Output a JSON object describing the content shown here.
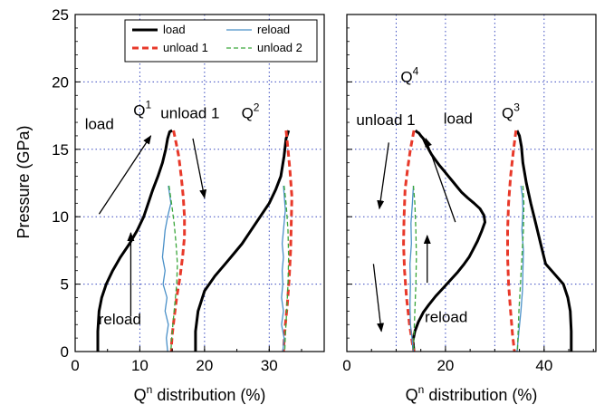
{
  "colors": {
    "load": "#000000",
    "reload": "#4a90c8",
    "unload1": "#e8392a",
    "unload2": "#3aa63a",
    "grid": "#3b4cc0"
  },
  "chart_data": [
    {
      "type": "line",
      "panel": "left",
      "xlabel_main": "Q",
      "xlabel_sup": "n",
      "xlabel_rest": " distribution (%)",
      "ylabel": "Pressure (GPa)",
      "xlim": [
        0,
        38.5
      ],
      "ylim": [
        0,
        25
      ],
      "xticks": [
        0,
        10,
        20,
        30
      ],
      "yticks": [
        0,
        5,
        10,
        15,
        20,
        25
      ],
      "xgrid": [
        10,
        20,
        30
      ],
      "ygrid": [
        5,
        10,
        15,
        20
      ],
      "legend": {
        "placement": "top",
        "entries": [
          {
            "series": "load",
            "label": "load"
          },
          {
            "series": "reload",
            "label": "reload"
          },
          {
            "series": "unload1",
            "label": "unload 1"
          },
          {
            "series": "unload2",
            "label": "unload 2"
          }
        ]
      },
      "series": [
        {
          "name": "load",
          "key": "load",
          "style": "solid",
          "width": 3,
          "x": [
            3.5,
            3.5,
            3.7,
            4.1,
            4.8,
            5.8,
            7.0,
            8.4,
            9.6,
            10.6,
            11.3,
            12.0,
            12.8,
            13.5,
            14.0,
            14.3,
            14.6,
            15.0
          ],
          "y": [
            0,
            1.5,
            3,
            4,
            5,
            6,
            7,
            8,
            9,
            10,
            11,
            12,
            13,
            14,
            15,
            15.8,
            16.3,
            16.4
          ]
        },
        {
          "name": "unload 1",
          "key": "unload1",
          "style": "dashed",
          "width": 3,
          "x": [
            15.2,
            15.6,
            16.0,
            16.4,
            16.7,
            16.9,
            16.9,
            16.6,
            16.2,
            15.7,
            15.3,
            15.0,
            14.9,
            14.9
          ],
          "y": [
            16.4,
            15.5,
            14.5,
            13,
            11.5,
            10,
            8.5,
            7,
            5.5,
            4,
            2.5,
            1.2,
            0.5,
            0
          ]
        },
        {
          "name": "reload",
          "key": "reload",
          "style": "solid",
          "width": 1.3,
          "x": [
            14.3,
            14.1,
            14.4,
            13.9,
            14.2,
            13.6,
            13.9,
            13.5,
            13.7,
            13.9,
            14.3,
            14.8,
            14.4
          ],
          "y": [
            0,
            1,
            2,
            3,
            4,
            5,
            6,
            7,
            8,
            9,
            10,
            11,
            12.3
          ]
        },
        {
          "name": "unload 2",
          "key": "unload2",
          "style": "dashed",
          "width": 1.3,
          "x": [
            14.5,
            14.9,
            15.3,
            15.6,
            15.8,
            15.7,
            15.4,
            15.1,
            14.9,
            14.8
          ],
          "y": [
            12.3,
            11,
            9.5,
            8,
            6.5,
            5,
            3.5,
            2,
            0.8,
            0
          ]
        },
        {
          "name": "load",
          "key": "load",
          "style": "solid",
          "width": 3,
          "x": [
            18.6,
            18.6,
            19.0,
            20.0,
            21.6,
            23.2,
            24.6,
            25.8,
            27.2,
            28.6,
            30.0,
            31.0,
            31.8,
            32.3,
            32.6,
            33.0
          ],
          "y": [
            0,
            1.5,
            3,
            4.5,
            5.6,
            6.5,
            7.3,
            8,
            9,
            10,
            11,
            12,
            13,
            14.5,
            15.8,
            16.4
          ]
        },
        {
          "name": "unload 1",
          "key": "unload1",
          "style": "dashed",
          "width": 3,
          "x": [
            32.6,
            32.9,
            33.2,
            33.5,
            33.4,
            33.3,
            33.1,
            32.8,
            32.5,
            32.3,
            32.2
          ],
          "y": [
            16.4,
            15,
            13.5,
            11.5,
            9.5,
            7.5,
            5.5,
            3.5,
            2,
            0.8,
            0
          ]
        },
        {
          "name": "reload",
          "key": "reload",
          "style": "solid",
          "width": 1.3,
          "x": [
            32.1,
            32.3,
            31.9,
            32.2,
            31.9,
            32.1,
            32.0,
            32.2,
            32.0,
            32.2,
            32.5,
            32.2
          ],
          "y": [
            0,
            1,
            2,
            3,
            4,
            5,
            6,
            7,
            8,
            9,
            10.5,
            12.3
          ]
        },
        {
          "name": "unload 2",
          "key": "unload2",
          "style": "dashed",
          "width": 1.3,
          "x": [
            32.3,
            32.6,
            32.9,
            33.0,
            32.9,
            32.7,
            32.5,
            32.4
          ],
          "y": [
            12.3,
            11,
            9,
            7,
            5,
            3,
            1.2,
            0
          ]
        }
      ],
      "annotations": [
        {
          "text": "load",
          "x": 1.5,
          "y": 16.5
        },
        {
          "text": "Q",
          "sup": "1",
          "x": 9.0,
          "y": 17.5
        },
        {
          "text": "unload 1",
          "x": 13.2,
          "y": 17.3
        },
        {
          "text": "Q",
          "sup": "2",
          "x": 25.7,
          "y": 17.3
        },
        {
          "text": "reload",
          "x": 3.6,
          "y": 2.0
        }
      ],
      "arrows": [
        {
          "x1": 3.7,
          "y1": 10.2,
          "x2": 11.7,
          "y2": 16.0
        },
        {
          "x1": 18.2,
          "y1": 15.8,
          "x2": 20.0,
          "y2": 11.4
        },
        {
          "x1": 8.6,
          "y1": 2.6,
          "x2": 8.6,
          "y2": 8.8
        }
      ]
    },
    {
      "type": "line",
      "panel": "right",
      "xlabel_main": "Q",
      "xlabel_sup": "n",
      "xlabel_rest": " distribution (%)",
      "xlim": [
        0,
        50.5
      ],
      "ylim": [
        0,
        25
      ],
      "xticks": [
        0,
        20,
        40
      ],
      "xgrid": [
        10,
        20,
        30,
        40
      ],
      "ygrid": [
        5,
        10,
        15,
        20
      ],
      "series": [
        {
          "name": "load",
          "key": "load",
          "style": "solid",
          "width": 3,
          "x": [
            45.5,
            45.5,
            45.3,
            44.8,
            43.9,
            42.0,
            40.3,
            39.3,
            38.3,
            37.3,
            36.4,
            35.7,
            35.4,
            35.0,
            34.5
          ],
          "y": [
            0,
            1.5,
            3,
            4,
            5,
            5.8,
            6.5,
            8,
            9.5,
            11,
            12.5,
            14,
            15.2,
            16,
            16.4
          ]
        },
        {
          "name": "unload 1",
          "key": "unload1",
          "style": "dashed",
          "width": 3,
          "x": [
            34.3,
            33.8,
            33.2,
            32.8,
            32.6,
            32.6,
            32.8,
            33.2,
            33.6,
            34.0
          ],
          "y": [
            16.4,
            15,
            13,
            11,
            9,
            7,
            5,
            3,
            1.2,
            0
          ]
        },
        {
          "name": "reload",
          "key": "reload",
          "style": "solid",
          "width": 1.3,
          "x": [
            34.5,
            34.9,
            35.3,
            35.6,
            35.7,
            35.8,
            35.5,
            35.7,
            35.6,
            35.3
          ],
          "y": [
            0,
            1.5,
            3,
            4.5,
            6,
            7.5,
            9,
            10.5,
            11.5,
            12.3
          ]
        },
        {
          "name": "unload 2",
          "key": "unload2",
          "style": "dashed",
          "width": 1.3,
          "x": [
            35.7,
            35.9,
            35.8,
            35.5,
            35.2,
            34.9,
            34.7,
            34.6
          ],
          "y": [
            12.3,
            11,
            9,
            7,
            5,
            3,
            1.2,
            0
          ]
        },
        {
          "name": "load",
          "key": "load",
          "style": "solid",
          "width": 3,
          "x": [
            13.6,
            13.4,
            13.8,
            14.5,
            15.5,
            16.7,
            18.0,
            19.5,
            21.0,
            22.5,
            23.8,
            24.8,
            25.5,
            26.5,
            27.3,
            28.0,
            27.8,
            27.0,
            25.8,
            24.5,
            23.3,
            22.4,
            21.5,
            20.6,
            19.7,
            18.8,
            18.0,
            17.2,
            16.6,
            16.0,
            15.5,
            15.0,
            14.6,
            14.2,
            13.9
          ],
          "y": [
            0,
            0.8,
            1.5,
            2.2,
            2.9,
            3.5,
            4.1,
            4.7,
            5.3,
            5.9,
            6.5,
            7.0,
            7.5,
            8.2,
            8.9,
            9.6,
            10.1,
            10.6,
            11.0,
            11.4,
            11.8,
            12.2,
            12.6,
            13.0,
            13.4,
            13.8,
            14.2,
            14.6,
            15.0,
            15.4,
            15.8,
            16.0,
            16.2,
            16.3,
            16.4
          ]
        },
        {
          "name": "unload 1",
          "key": "unload1",
          "style": "dashed",
          "width": 3,
          "x": [
            13.6,
            12.9,
            12.3,
            11.8,
            11.6,
            11.5,
            11.7,
            12.1,
            12.7,
            13.3,
            13.6
          ],
          "y": [
            16.4,
            15,
            13.5,
            12,
            10,
            8,
            6,
            4,
            2,
            0.6,
            0
          ]
        },
        {
          "name": "reload",
          "key": "reload",
          "style": "solid",
          "width": 1.3,
          "x": [
            13.5,
            13.2,
            12.9,
            12.8,
            12.9,
            12.8,
            13.1,
            13.0,
            13.3,
            13.5
          ],
          "y": [
            0,
            1,
            2,
            3.5,
            5,
            6.5,
            8,
            9.5,
            11,
            12.3
          ]
        },
        {
          "name": "unload 2",
          "key": "unload2",
          "style": "dashed",
          "width": 1.3,
          "x": [
            13.5,
            13.8,
            14.0,
            14.1,
            14.0,
            13.8,
            13.6,
            13.5
          ],
          "y": [
            12.3,
            11,
            9,
            7,
            5,
            3,
            1.2,
            0
          ]
        }
      ],
      "annotations": [
        {
          "text": "Q",
          "sup": "4",
          "x": 10.9,
          "y": 20.0
        },
        {
          "text": "unload 1",
          "x": 1.9,
          "y": 16.8
        },
        {
          "text": "load",
          "x": 19.6,
          "y": 16.9
        },
        {
          "text": "Q",
          "sup": "3",
          "x": 31.4,
          "y": 17.3
        },
        {
          "text": "reload",
          "x": 15.8,
          "y": 2.2
        }
      ],
      "arrows": [
        {
          "x1": 8.5,
          "y1": 15.5,
          "x2": 6.6,
          "y2": 10.6
        },
        {
          "x1": 22.0,
          "y1": 9.6,
          "x2": 16.0,
          "y2": 15.8
        },
        {
          "x1": 5.4,
          "y1": 6.5,
          "x2": 7.0,
          "y2": 1.5
        },
        {
          "x1": 16.3,
          "y1": 5.1,
          "x2": 16.3,
          "y2": 8.6
        }
      ]
    }
  ]
}
